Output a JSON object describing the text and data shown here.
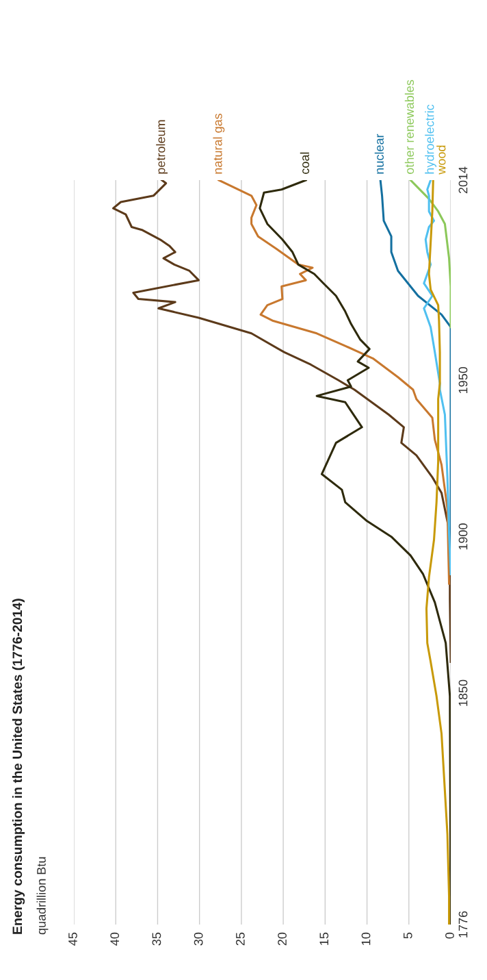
{
  "chart_data": {
    "type": "line",
    "title": "Energy consumption in the United States (1776-2014)",
    "ylabel": "quadrillion Btu",
    "orientation": "horizontal",
    "xlim": [
      45,
      0
    ],
    "xticks": [
      45,
      40,
      35,
      30,
      25,
      20,
      15,
      10,
      5,
      0
    ],
    "ylim": [
      1776,
      2014
    ],
    "yticks": [
      1776,
      1850,
      1900,
      1950,
      2014
    ],
    "grid": "x",
    "marker": "none",
    "line_style": "solid",
    "series": [
      {
        "name": "petroleum",
        "color": "#5c3a1a",
        "x": [
          1860,
          1880,
          1901,
          1914,
          1919,
          1926,
          1930,
          1935,
          1939,
          1947,
          1950,
          1955,
          1959,
          1965,
          1970,
          1973,
          1975,
          1976,
          1978,
          1982,
          1985,
          1987,
          1989,
          1991,
          1993,
          1995,
          1998,
          1999,
          2003,
          2005,
          2007,
          2009,
          2013,
          2014
        ],
        "values": [
          0,
          0.1,
          0.1,
          1.1,
          2.2,
          4.1,
          5.9,
          5.6,
          7.4,
          11.5,
          13.4,
          16.7,
          19.9,
          23.8,
          30.1,
          34.9,
          32.9,
          37.3,
          37.9,
          30.1,
          31.2,
          33.0,
          34.3,
          32.9,
          33.6,
          34.7,
          36.8,
          38.1,
          38.8,
          40.3,
          39.4,
          35.5,
          34.0,
          34.5
        ]
      },
      {
        "name": "natural gas",
        "color": "#c8782e",
        "x": [
          1885,
          1909,
          1923,
          1931,
          1938,
          1944,
          1947,
          1951,
          1957,
          1961,
          1965,
          1969,
          1971,
          1974,
          1976,
          1980,
          1982,
          1984,
          1986,
          1987,
          1992,
          1996,
          2000,
          2002,
          2006,
          2009,
          2014
        ],
        "values": [
          0.2,
          0.4,
          1.1,
          1.9,
          2.2,
          4.1,
          4.5,
          6.3,
          9.3,
          12.6,
          16.0,
          21.2,
          22.7,
          21.9,
          20.1,
          20.2,
          17.3,
          18.0,
          16.5,
          18.2,
          20.8,
          23.0,
          23.8,
          23.8,
          23.2,
          23.8,
          27.7
        ]
      },
      {
        "name": "coal",
        "color": "#2e2a0c",
        "x": [
          1776,
          1849,
          1866,
          1879,
          1888,
          1894,
          1900,
          1905,
          1911,
          1915,
          1920,
          1930,
          1935,
          1943,
          1945,
          1948,
          1950,
          1954,
          1956,
          1960,
          1963,
          1968,
          1972,
          1977,
          1981,
          1984,
          1987,
          1991,
          1995,
          2000,
          2005,
          2010,
          2011,
          2014
        ],
        "values": [
          0,
          0.1,
          0.6,
          1.9,
          3.3,
          4.8,
          7.1,
          10.0,
          12.6,
          13.0,
          15.4,
          13.7,
          10.6,
          12.6,
          16.0,
          11.9,
          12.3,
          9.8,
          11.1,
          9.7,
          10.8,
          11.9,
          12.6,
          13.7,
          15.2,
          16.3,
          18.2,
          18.9,
          20.1,
          21.9,
          22.8,
          22.3,
          20.2,
          17.3
        ]
      },
      {
        "name": "nuclear",
        "color": "#1470a0",
        "x": [
          1895,
          1967,
          1971,
          1977,
          1985,
          1991,
          1996,
          2001,
          2009,
          2014
        ],
        "values": [
          0,
          0,
          1.1,
          3.9,
          6.3,
          7.1,
          7.1,
          8.0,
          8.2,
          8.4
        ]
      },
      {
        "name": "other renewables",
        "color": "#8cc85a",
        "x": [
          1967,
          1980,
          1989,
          2000,
          2004,
          2008,
          2014
        ],
        "values": [
          0,
          0,
          0.2,
          0.7,
          1.5,
          2.6,
          4.8
        ]
      },
      {
        "name": "hydroelectric",
        "color": "#50c0f0",
        "x": [
          1888,
          1901,
          1919,
          1939,
          1947,
          1949,
          1959,
          1967,
          1973,
          1977,
          1981,
          1987,
          1991,
          1995,
          1999,
          2001,
          2004,
          2009,
          2011,
          2014
        ],
        "values": [
          0,
          0.2,
          0.4,
          0.7,
          1.3,
          1.3,
          1.9,
          2.4,
          3.2,
          2.2,
          3.2,
          2.4,
          2.8,
          3.0,
          2.6,
          2.0,
          2.6,
          2.6,
          2.8,
          2.4
        ]
      },
      {
        "name": "wood",
        "color": "#c89a0a",
        "x": [
          1776,
          1785,
          1805,
          1837,
          1849,
          1860,
          1866,
          1877,
          1887,
          1899,
          1911,
          1924,
          1944,
          1949,
          1959,
          1969,
          1974,
          1979,
          1984,
          1994,
          2004,
          2014
        ],
        "values": [
          0.2,
          0.2,
          0.4,
          1.1,
          1.7,
          2.4,
          2.8,
          2.9,
          2.6,
          2.0,
          1.7,
          1.5,
          1.5,
          1.3,
          1.3,
          1.4,
          1.5,
          2.4,
          2.6,
          2.4,
          2.2,
          2.1
        ]
      }
    ]
  }
}
